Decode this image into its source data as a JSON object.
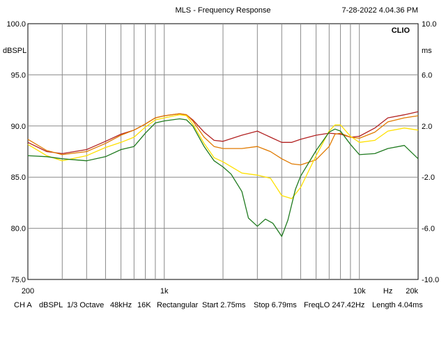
{
  "header": {
    "title": "MLS - Frequency Response",
    "timestamp": "7-28-2022 4.04.36 PM",
    "brand": "CLIO"
  },
  "chart_data": {
    "type": "line",
    "title": "MLS - Frequency Response",
    "x_scale": "log",
    "xlim": [
      200,
      20000
    ],
    "x_tick_labels": [
      {
        "value": 200,
        "label": "200"
      },
      {
        "value": 1000,
        "label": "1k"
      },
      {
        "value": 10000,
        "label": "10k"
      },
      {
        "value": 14000,
        "label": "Hz"
      },
      {
        "value": 20000,
        "label": "20k"
      }
    ],
    "x_minor_gridlines": [
      300,
      400,
      500,
      600,
      700,
      800,
      900,
      2000,
      3000,
      4000,
      5000,
      6000,
      7000,
      8000,
      9000
    ],
    "ylim": [
      75,
      100
    ],
    "ylabel": "dBSPL",
    "y_ticks": [
      75,
      80,
      85,
      90,
      95,
      100
    ],
    "y_tick_labels": [
      "75.0",
      "80.0",
      "85.0",
      "90.0",
      "95.0",
      "100.0"
    ],
    "y2lim": [
      -10,
      10
    ],
    "y2label": "ms",
    "y2_ticks": [
      -10,
      -6,
      -2,
      2,
      6,
      10
    ],
    "y2_tick_labels": [
      "-10.0",
      "-6.0",
      "-2.0",
      "2.0",
      "6.0",
      "10.0"
    ],
    "grid": true,
    "series": [
      {
        "name": "red",
        "color": "#b22222",
        "points": [
          [
            200,
            88.4
          ],
          [
            250,
            87.5
          ],
          [
            300,
            87.3
          ],
          [
            400,
            87.7
          ],
          [
            500,
            88.5
          ],
          [
            600,
            89.2
          ],
          [
            700,
            89.6
          ],
          [
            800,
            90.2
          ],
          [
            900,
            90.8
          ],
          [
            1000,
            91.0
          ],
          [
            1200,
            91.2
          ],
          [
            1300,
            91.1
          ],
          [
            1400,
            90.6
          ],
          [
            1600,
            89.4
          ],
          [
            1800,
            88.6
          ],
          [
            2000,
            88.5
          ],
          [
            2500,
            89.1
          ],
          [
            3000,
            89.5
          ],
          [
            3500,
            88.9
          ],
          [
            4000,
            88.4
          ],
          [
            4500,
            88.4
          ],
          [
            5000,
            88.7
          ],
          [
            6000,
            89.1
          ],
          [
            7000,
            89.3
          ],
          [
            8000,
            89.2
          ],
          [
            9000,
            88.9
          ],
          [
            10000,
            89.0
          ],
          [
            12000,
            89.8
          ],
          [
            14000,
            90.8
          ],
          [
            17000,
            91.1
          ],
          [
            20000,
            91.4
          ]
        ]
      },
      {
        "name": "orange",
        "color": "#e07a00",
        "points": [
          [
            200,
            88.7
          ],
          [
            250,
            87.6
          ],
          [
            300,
            87.2
          ],
          [
            400,
            87.5
          ],
          [
            500,
            88.3
          ],
          [
            600,
            89.1
          ],
          [
            700,
            89.6
          ],
          [
            800,
            90.2
          ],
          [
            900,
            90.8
          ],
          [
            1000,
            91.0
          ],
          [
            1200,
            91.2
          ],
          [
            1300,
            91.1
          ],
          [
            1400,
            90.5
          ],
          [
            1600,
            88.9
          ],
          [
            1800,
            88.0
          ],
          [
            2000,
            87.8
          ],
          [
            2500,
            87.8
          ],
          [
            3000,
            88.0
          ],
          [
            3500,
            87.5
          ],
          [
            4000,
            86.8
          ],
          [
            4500,
            86.3
          ],
          [
            5000,
            86.2
          ],
          [
            6000,
            86.7
          ],
          [
            7000,
            88.0
          ],
          [
            7500,
            89.2
          ],
          [
            8000,
            89.3
          ],
          [
            9000,
            88.9
          ],
          [
            10000,
            88.8
          ],
          [
            12000,
            89.4
          ],
          [
            14000,
            90.4
          ],
          [
            17000,
            90.8
          ],
          [
            20000,
            91.0
          ]
        ]
      },
      {
        "name": "yellow",
        "color": "#ffe000",
        "points": [
          [
            200,
            88.2
          ],
          [
            250,
            87.1
          ],
          [
            300,
            86.6
          ],
          [
            400,
            87.1
          ],
          [
            500,
            87.9
          ],
          [
            600,
            88.4
          ],
          [
            700,
            88.9
          ],
          [
            800,
            89.9
          ],
          [
            900,
            90.6
          ],
          [
            1000,
            90.8
          ],
          [
            1200,
            91.1
          ],
          [
            1300,
            91.0
          ],
          [
            1400,
            90.2
          ],
          [
            1600,
            88.3
          ],
          [
            1800,
            86.9
          ],
          [
            2000,
            86.5
          ],
          [
            2500,
            85.4
          ],
          [
            3000,
            85.2
          ],
          [
            3500,
            84.9
          ],
          [
            4000,
            83.2
          ],
          [
            4500,
            82.9
          ],
          [
            5000,
            84.0
          ],
          [
            6000,
            87.1
          ],
          [
            7000,
            89.5
          ],
          [
            7500,
            90.1
          ],
          [
            8000,
            90.1
          ],
          [
            9000,
            89.0
          ],
          [
            10000,
            88.4
          ],
          [
            12000,
            88.6
          ],
          [
            14000,
            89.5
          ],
          [
            17000,
            89.8
          ],
          [
            20000,
            89.6
          ]
        ]
      },
      {
        "name": "green",
        "color": "#1f7a1f",
        "points": [
          [
            200,
            87.1
          ],
          [
            250,
            87.0
          ],
          [
            300,
            86.8
          ],
          [
            400,
            86.6
          ],
          [
            500,
            87.0
          ],
          [
            600,
            87.7
          ],
          [
            700,
            88.0
          ],
          [
            800,
            89.3
          ],
          [
            900,
            90.3
          ],
          [
            1000,
            90.5
          ],
          [
            1200,
            90.7
          ],
          [
            1300,
            90.6
          ],
          [
            1400,
            90.0
          ],
          [
            1600,
            88.0
          ],
          [
            1800,
            86.6
          ],
          [
            2000,
            86.0
          ],
          [
            2200,
            85.3
          ],
          [
            2500,
            83.6
          ],
          [
            2700,
            81.0
          ],
          [
            3000,
            80.2
          ],
          [
            3300,
            80.9
          ],
          [
            3600,
            80.5
          ],
          [
            4000,
            79.2
          ],
          [
            4300,
            80.8
          ],
          [
            4700,
            83.8
          ],
          [
            5000,
            85.1
          ],
          [
            6000,
            87.6
          ],
          [
            7000,
            89.4
          ],
          [
            7500,
            89.7
          ],
          [
            8000,
            89.5
          ],
          [
            9000,
            88.2
          ],
          [
            10000,
            87.2
          ],
          [
            12000,
            87.3
          ],
          [
            14000,
            87.8
          ],
          [
            17000,
            88.1
          ],
          [
            20000,
            86.8
          ]
        ]
      }
    ]
  },
  "footer": {
    "items": [
      "CH A",
      "dBSPL",
      "1/3 Octave",
      "48kHz",
      "16K",
      "Rectangular",
      "Start 2.75ms",
      "Stop 6.79ms",
      "FreqLO 247.42Hz",
      "Length 4.04ms"
    ]
  }
}
